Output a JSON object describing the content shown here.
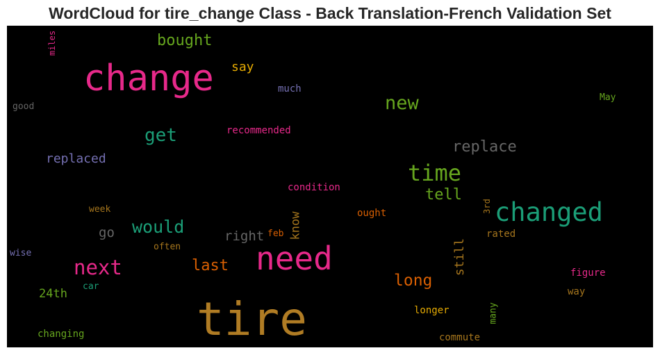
{
  "chart_data": {
    "type": "wordcloud",
    "title": "WordCloud for tire_change Class - Back Translation-French Validation Set",
    "words": [
      {
        "text": "tire",
        "weight": 1.0,
        "color": "#b07c24",
        "orientation": "horizontal"
      },
      {
        "text": "change",
        "weight": 0.78,
        "color": "#e7298a",
        "orientation": "horizontal"
      },
      {
        "text": "need",
        "weight": 0.68,
        "color": "#e7298a",
        "orientation": "horizontal"
      },
      {
        "text": "changed",
        "weight": 0.55,
        "color": "#1b9e77",
        "orientation": "horizontal"
      },
      {
        "text": "time",
        "weight": 0.48,
        "color": "#66a61e",
        "orientation": "horizontal"
      },
      {
        "text": "next",
        "weight": 0.44,
        "color": "#e7298a",
        "orientation": "horizontal"
      },
      {
        "text": "new",
        "weight": 0.42,
        "color": "#66a61e",
        "orientation": "horizontal"
      },
      {
        "text": "get",
        "weight": 0.42,
        "color": "#1b9e77",
        "orientation": "horizontal"
      },
      {
        "text": "would",
        "weight": 0.4,
        "color": "#1b9e77",
        "orientation": "horizontal"
      },
      {
        "text": "replace",
        "weight": 0.38,
        "color": "#666666",
        "orientation": "horizontal"
      },
      {
        "text": "bought",
        "weight": 0.38,
        "color": "#66a61e",
        "orientation": "horizontal"
      },
      {
        "text": "long",
        "weight": 0.37,
        "color": "#d95f02",
        "orientation": "horizontal"
      },
      {
        "text": "last",
        "weight": 0.36,
        "color": "#d95f02",
        "orientation": "horizontal"
      },
      {
        "text": "tell",
        "weight": 0.35,
        "color": "#66a61e",
        "orientation": "horizontal"
      },
      {
        "text": "replaced",
        "weight": 0.3,
        "color": "#7570b3",
        "orientation": "horizontal"
      },
      {
        "text": "right",
        "weight": 0.3,
        "color": "#666666",
        "orientation": "horizontal"
      },
      {
        "text": "go",
        "weight": 0.3,
        "color": "#666666",
        "orientation": "horizontal"
      },
      {
        "text": "say",
        "weight": 0.28,
        "color": "#e6ab02",
        "orientation": "horizontal"
      },
      {
        "text": "24th",
        "weight": 0.28,
        "color": "#66a61e",
        "orientation": "horizontal"
      },
      {
        "text": "still",
        "weight": 0.28,
        "color": "#a6761d",
        "orientation": "vertical"
      },
      {
        "text": "know",
        "weight": 0.28,
        "color": "#a6761d",
        "orientation": "vertical"
      },
      {
        "text": "much",
        "weight": 0.22,
        "color": "#7570b3",
        "orientation": "horizontal"
      },
      {
        "text": "recommended",
        "weight": 0.22,
        "color": "#e7298a",
        "orientation": "horizontal"
      },
      {
        "text": "condition",
        "weight": 0.22,
        "color": "#e7298a",
        "orientation": "horizontal"
      },
      {
        "text": "ought",
        "weight": 0.22,
        "color": "#d95f02",
        "orientation": "horizontal"
      },
      {
        "text": "rated",
        "weight": 0.22,
        "color": "#a6761d",
        "orientation": "horizontal"
      },
      {
        "text": "figure",
        "weight": 0.22,
        "color": "#e7298a",
        "orientation": "horizontal"
      },
      {
        "text": "way",
        "weight": 0.22,
        "color": "#a6761d",
        "orientation": "horizontal"
      },
      {
        "text": "longer",
        "weight": 0.22,
        "color": "#e6ab02",
        "orientation": "horizontal"
      },
      {
        "text": "commute",
        "weight": 0.22,
        "color": "#a6761d",
        "orientation": "horizontal"
      },
      {
        "text": "changing",
        "weight": 0.22,
        "color": "#66a61e",
        "orientation": "horizontal"
      },
      {
        "text": "good",
        "weight": 0.2,
        "color": "#666666",
        "orientation": "horizontal"
      },
      {
        "text": "May",
        "weight": 0.2,
        "color": "#66a61e",
        "orientation": "horizontal"
      },
      {
        "text": "week",
        "weight": 0.2,
        "color": "#a6761d",
        "orientation": "horizontal"
      },
      {
        "text": "often",
        "weight": 0.2,
        "color": "#a6761d",
        "orientation": "horizontal"
      },
      {
        "text": "feb",
        "weight": 0.2,
        "color": "#d95f02",
        "orientation": "horizontal"
      },
      {
        "text": "wise",
        "weight": 0.2,
        "color": "#7570b3",
        "orientation": "horizontal"
      },
      {
        "text": "car",
        "weight": 0.2,
        "color": "#1b9e77",
        "orientation": "horizontal"
      },
      {
        "text": "miles",
        "weight": 0.18,
        "color": "#e7298a",
        "orientation": "vertical"
      },
      {
        "text": "3rd",
        "weight": 0.18,
        "color": "#a6761d",
        "orientation": "vertical"
      },
      {
        "text": "many",
        "weight": 0.2,
        "color": "#66a61e",
        "orientation": "vertical"
      }
    ]
  }
}
